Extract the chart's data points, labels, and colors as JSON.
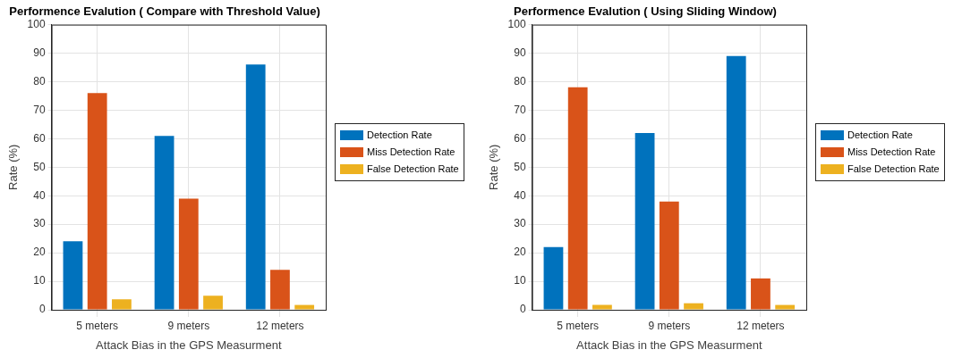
{
  "chart_data": [
    {
      "type": "bar",
      "title": "Performence Evalution ( Compare with Threshold Value)",
      "xlabel": "Attack Bias in the GPS Measurment",
      "ylabel": "Rate (%)",
      "categories": [
        "5 meters",
        "9 meters",
        "12 meters"
      ],
      "series": [
        {
          "name": "Detection Rate",
          "color": "#0072bd",
          "values": [
            24,
            61,
            86
          ]
        },
        {
          "name": "Miss Detection Rate",
          "color": "#d95319",
          "values": [
            76,
            39,
            14
          ]
        },
        {
          "name": "False Detection Rate",
          "color": "#edb120",
          "values": [
            3.7,
            4.9,
            1.7
          ]
        }
      ],
      "ylim": [
        0,
        100
      ],
      "yticks": [
        0,
        10,
        20,
        30,
        40,
        50,
        60,
        70,
        80,
        90,
        100
      ],
      "grid": true,
      "legend": "right"
    },
    {
      "type": "bar",
      "title": "Performence Evalution ( Using Sliding Window)",
      "xlabel": "Attack Bias in the GPS Measurment",
      "ylabel": "Rate (%)",
      "categories": [
        "5 meters",
        "9 meters",
        "12 meters"
      ],
      "series": [
        {
          "name": "Detection Rate",
          "color": "#0072bd",
          "values": [
            22,
            62,
            89
          ]
        },
        {
          "name": "Miss Detection Rate",
          "color": "#d95319",
          "values": [
            78,
            38,
            11
          ]
        },
        {
          "name": "False Detection Rate",
          "color": "#edb120",
          "values": [
            1.7,
            2.3,
            1.7
          ]
        }
      ],
      "ylim": [
        0,
        100
      ],
      "yticks": [
        0,
        10,
        20,
        30,
        40,
        50,
        60,
        70,
        80,
        90,
        100
      ],
      "grid": true,
      "legend": "right"
    }
  ]
}
